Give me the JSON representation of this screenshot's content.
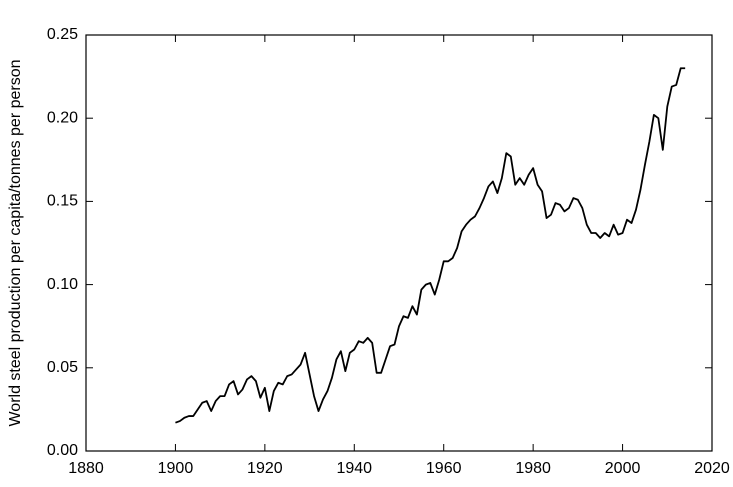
{
  "chart_data": {
    "type": "line",
    "ylabel": "World steel production per capita/tonnes per person",
    "x": [
      1900,
      1901,
      1902,
      1903,
      1904,
      1905,
      1906,
      1907,
      1908,
      1909,
      1910,
      1911,
      1912,
      1913,
      1914,
      1915,
      1916,
      1917,
      1918,
      1919,
      1920,
      1921,
      1922,
      1923,
      1924,
      1925,
      1926,
      1927,
      1928,
      1929,
      1930,
      1931,
      1932,
      1933,
      1934,
      1935,
      1936,
      1937,
      1938,
      1939,
      1940,
      1941,
      1942,
      1943,
      1944,
      1945,
      1946,
      1947,
      1948,
      1949,
      1950,
      1951,
      1952,
      1953,
      1954,
      1955,
      1956,
      1957,
      1958,
      1959,
      1960,
      1961,
      1962,
      1963,
      1964,
      1965,
      1966,
      1967,
      1968,
      1969,
      1970,
      1971,
      1972,
      1973,
      1974,
      1975,
      1976,
      1977,
      1978,
      1979,
      1980,
      1981,
      1982,
      1983,
      1984,
      1985,
      1986,
      1987,
      1988,
      1989,
      1990,
      1991,
      1992,
      1993,
      1994,
      1995,
      1996,
      1997,
      1998,
      1999,
      2000,
      2001,
      2002,
      2003,
      2004,
      2005,
      2006,
      2007,
      2008,
      2009,
      2010,
      2011,
      2012,
      2013,
      2014
    ],
    "values": [
      0.017,
      0.018,
      0.02,
      0.021,
      0.021,
      0.025,
      0.029,
      0.03,
      0.024,
      0.03,
      0.033,
      0.033,
      0.04,
      0.042,
      0.034,
      0.037,
      0.043,
      0.045,
      0.042,
      0.032,
      0.038,
      0.024,
      0.036,
      0.041,
      0.04,
      0.045,
      0.046,
      0.049,
      0.052,
      0.059,
      0.046,
      0.033,
      0.024,
      0.031,
      0.036,
      0.044,
      0.055,
      0.06,
      0.048,
      0.059,
      0.061,
      0.066,
      0.065,
      0.068,
      0.065,
      0.047,
      0.047,
      0.055,
      0.063,
      0.064,
      0.075,
      0.081,
      0.08,
      0.087,
      0.082,
      0.097,
      0.1,
      0.101,
      0.094,
      0.103,
      0.114,
      0.114,
      0.116,
      0.122,
      0.132,
      0.136,
      0.139,
      0.141,
      0.146,
      0.152,
      0.159,
      0.162,
      0.155,
      0.164,
      0.179,
      0.177,
      0.16,
      0.164,
      0.16,
      0.166,
      0.17,
      0.16,
      0.156,
      0.14,
      0.142,
      0.149,
      0.148,
      0.144,
      0.146,
      0.152,
      0.151,
      0.146,
      0.136,
      0.131,
      0.131,
      0.128,
      0.131,
      0.129,
      0.136,
      0.13,
      0.131,
      0.139,
      0.137,
      0.145,
      0.157,
      0.172,
      0.186,
      0.202,
      0.2,
      0.181,
      0.207,
      0.219,
      0.22,
      0.23,
      0.23
    ],
    "color": "#000000",
    "xlim": [
      1880,
      2020
    ],
    "xticks": [
      1880,
      1900,
      1920,
      1940,
      1960,
      1980,
      2000,
      2020
    ],
    "ylim": [
      0,
      0.25
    ],
    "yticks": [
      {
        "value": 0,
        "label": "0.00"
      },
      {
        "value": 0.05,
        "label": "0.05"
      },
      {
        "value": 0.1,
        "label": "0.10"
      },
      {
        "value": 0.15,
        "label": "0.15"
      },
      {
        "value": 0.2,
        "label": "0.20"
      },
      {
        "value": 0.25,
        "label": "0.25"
      }
    ]
  }
}
